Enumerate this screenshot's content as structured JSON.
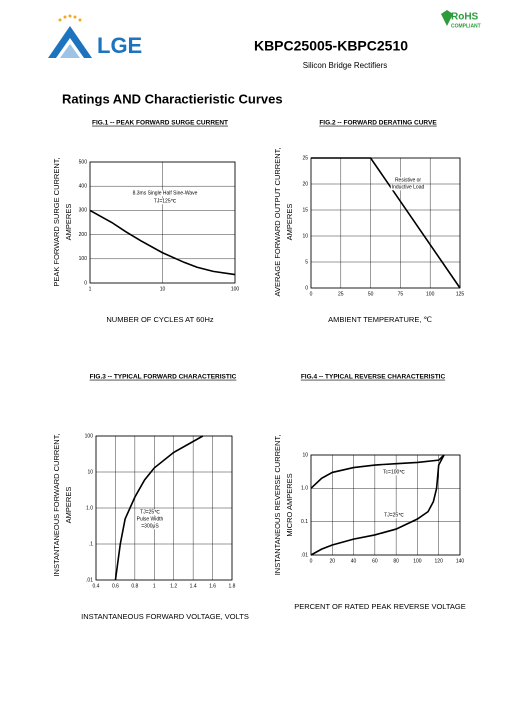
{
  "header": {
    "logo": "LGE",
    "part_number": "KBPC25005-KBPC2510",
    "subtitle": "Silicon Bridge Rectifiers",
    "rohs": "RoHS",
    "rohs_sub": "COMPLIANT"
  },
  "section_title": "Ratings AND Charactieristic Curves",
  "chart_data": [
    {
      "type": "line",
      "title": "FIG.1 -- PEAK FORWARD SURGE CURRENT",
      "ylabel": [
        "PEAK FORWARD SURGE CURRENT,",
        "AMPERES"
      ],
      "xlabel": "NUMBER  OF  CYCLES AT 60Hz",
      "xlog": true,
      "xlim": [
        1,
        100
      ],
      "xticks": [
        1,
        10,
        100
      ],
      "ylim": [
        0,
        500
      ],
      "yticks": [
        0,
        100,
        200,
        300,
        400,
        500
      ],
      "grid": true,
      "annotations": [
        "8.3ms Single Half Sine-Wave",
        "TJ=125℃"
      ],
      "series": [
        {
          "color": "#000000",
          "x": [
            1,
            2,
            3,
            5,
            10,
            20,
            30,
            50,
            100
          ],
          "values": [
            300,
            250,
            215,
            175,
            125,
            85,
            65,
            48,
            35
          ]
        }
      ]
    },
    {
      "type": "line",
      "title": "FIG.2 -- FORWARD DERATING CURVE",
      "ylabel": [
        "AVERAGE FORWARD OUTPUT CURRENT,",
        "AMPERES"
      ],
      "xlabel": "AMBIENT  TEMPERATURE,  ℃",
      "xlim": [
        0,
        125
      ],
      "xticks": [
        0,
        25,
        50,
        75,
        100,
        125
      ],
      "ylim": [
        0,
        25
      ],
      "yticks": [
        0,
        5,
        10,
        15,
        20,
        25
      ],
      "grid": true,
      "annotations": [
        "Resistive or",
        "Inductive Load"
      ],
      "series": [
        {
          "color": "#000000",
          "x": [
            0,
            50,
            125
          ],
          "values": [
            25,
            25,
            0
          ]
        }
      ]
    },
    {
      "type": "line",
      "title": "FIG.3 -- TYPICAL FORWARD CHARACTERISTIC",
      "ylabel": [
        "INSTANTANEOUS FORWARD CURRENT,",
        "AMPERES"
      ],
      "xlabel": "INSTANTANEOUS FORWARD VOLTAGE,  VOLTS",
      "xlim": [
        0.4,
        1.8
      ],
      "xticks": [
        0.4,
        0.6,
        0.8,
        1.0,
        1.2,
        1.4,
        1.6,
        1.8
      ],
      "ylog": true,
      "ylim": [
        0.01,
        100
      ],
      "yticks": [
        {
          "value": 0.01,
          "label": ".01"
        },
        {
          "value": 0.1,
          "label": ".1"
        },
        {
          "value": 1,
          "label": "1.0"
        },
        10,
        100
      ],
      "grid": true,
      "annotations": [
        "TJ=25℃",
        "Pulse Width",
        "=300μS"
      ],
      "series": [
        {
          "color": "#000000",
          "x": [
            0.6,
            0.65,
            0.7,
            0.8,
            0.9,
            1.0,
            1.2,
            1.5
          ],
          "values": [
            0.01,
            0.1,
            0.5,
            2,
            6,
            13,
            35,
            100
          ]
        }
      ]
    },
    {
      "type": "line",
      "title": "FIG.4 -- TYPICAL REVERSE CHARACTERISTIC",
      "ylabel": [
        "INSTANTANEOUS REVERSE CURRENT,",
        "MICRO AMPERES"
      ],
      "xlabel": "PERCENT OF RATED PEAK REVERSE VOLTAGE",
      "xlim": [
        0,
        140
      ],
      "xticks": [
        0,
        20,
        40,
        60,
        80,
        100,
        120,
        140
      ],
      "ylog": true,
      "ylim": [
        0.01,
        10
      ],
      "yticks": [
        {
          "value": 0.01,
          "label": ".01"
        },
        0.1,
        {
          "value": 1,
          "label": "1.0"
        },
        10
      ],
      "grid": true,
      "annotations": [
        "Tc=100℃",
        "TJ=25℃"
      ],
      "series": [
        {
          "color": "#000000",
          "x": [
            0,
            10,
            20,
            40,
            60,
            80,
            100,
            120,
            125
          ],
          "values": [
            1,
            2,
            3,
            4.2,
            5,
            5.5,
            6,
            7,
            10
          ]
        },
        {
          "color": "#000000",
          "x": [
            0,
            10,
            20,
            40,
            60,
            80,
            100,
            110,
            115,
            118,
            120,
            125
          ],
          "values": [
            0.01,
            0.015,
            0.02,
            0.03,
            0.04,
            0.06,
            0.12,
            0.2,
            0.4,
            1,
            5,
            10
          ]
        }
      ]
    }
  ]
}
